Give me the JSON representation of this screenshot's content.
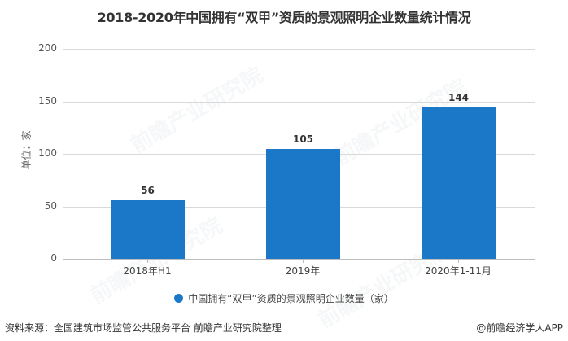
{
  "title": "2018-2020年中国拥有“双甲”资质的景观照明企业数量统计情况",
  "watermark": "前瞻产业研究院",
  "footer": {
    "source": "资料来源：全国建筑市场监管公共服务平台 前瞻产业研究院整理",
    "credit": "@前瞻经济学人APP"
  },
  "colors": {
    "bar": "#1b78c8"
  },
  "chart_data": {
    "type": "bar",
    "title": "2018-2020年中国拥有“双甲”资质的景观照明企业数量统计情况",
    "categories": [
      "2018年H1",
      "2019年",
      "2020年1-11月"
    ],
    "series": [
      {
        "name": "中国拥有“双甲”资质的景观照明企业数量（家）",
        "values": [
          56,
          105,
          144
        ]
      }
    ],
    "values": [
      56,
      105,
      144
    ],
    "value_labels": [
      "56",
      "105",
      "144"
    ],
    "xlabel": "",
    "ylabel": "单位：家",
    "ylim": [
      0,
      200
    ],
    "yticks": [
      "0",
      "50",
      "100",
      "150",
      "200"
    ],
    "grid": true,
    "legend_position": "bottom"
  }
}
